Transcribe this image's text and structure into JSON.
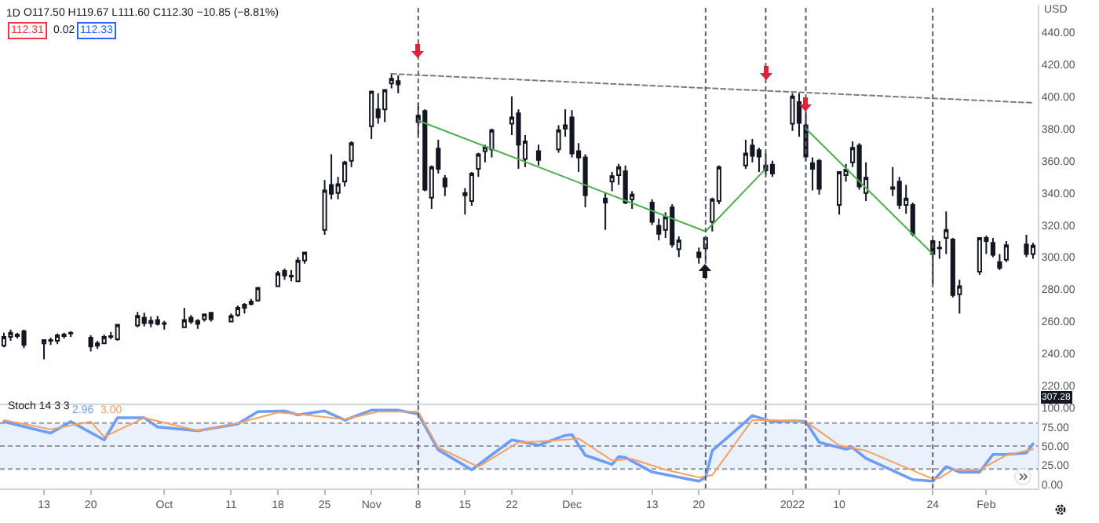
{
  "chart_data": [
    {
      "type": "candlestick",
      "title": "1D",
      "color": "#131722",
      "x": [
        "2021-09-07",
        "2021-09-08",
        "2021-09-09",
        "2021-09-10",
        "2021-09-13",
        "2021-09-14",
        "2021-09-15",
        "2021-09-16",
        "2021-09-17",
        "2021-09-20",
        "2021-09-21",
        "2021-09-22",
        "2021-09-23",
        "2021-09-24",
        "2021-09-27",
        "2021-09-28",
        "2021-09-29",
        "2021-09-30",
        "2021-10-01",
        "2021-10-04",
        "2021-10-05",
        "2021-10-06",
        "2021-10-07",
        "2021-10-08",
        "2021-10-11",
        "2021-10-12",
        "2021-10-13",
        "2021-10-14",
        "2021-10-15",
        "2021-10-18",
        "2021-10-19",
        "2021-10-20",
        "2021-10-21",
        "2021-10-22",
        "2021-10-25",
        "2021-10-26",
        "2021-10-27",
        "2021-10-28",
        "2021-10-29",
        "2021-11-01",
        "2021-11-02",
        "2021-11-03",
        "2021-11-04",
        "2021-11-05",
        "2021-11-08",
        "2021-11-09",
        "2021-11-10",
        "2021-11-11",
        "2021-11-12",
        "2021-11-15",
        "2021-11-16",
        "2021-11-17",
        "2021-11-18",
        "2021-11-19",
        "2021-11-22",
        "2021-11-23",
        "2021-11-24",
        "2021-11-26",
        "2021-11-29",
        "2021-11-30",
        "2021-12-01",
        "2021-12-02",
        "2021-12-03",
        "2021-12-06",
        "2021-12-07",
        "2021-12-08",
        "2021-12-09",
        "2021-12-10",
        "2021-12-13",
        "2021-12-14",
        "2021-12-15",
        "2021-12-16",
        "2021-12-17",
        "2021-12-20",
        "2021-12-21",
        "2021-12-22",
        "2021-12-23",
        "2021-12-27",
        "2021-12-28",
        "2021-12-29",
        "2021-12-30",
        "2021-12-31",
        "2022-01-03",
        "2022-01-04",
        "2022-01-05",
        "2022-01-06",
        "2022-01-07",
        "2022-01-10",
        "2022-01-11",
        "2022-01-12",
        "2022-01-13",
        "2022-01-14",
        "2022-01-18",
        "2022-01-19",
        "2022-01-20",
        "2022-01-21",
        "2022-01-24",
        "2022-01-25",
        "2022-01-26",
        "2022-01-27",
        "2022-01-28",
        "2022-01-31",
        "2022-02-01",
        "2022-02-02",
        "2022-02-03",
        "2022-02-04",
        "2022-02-07",
        "2022-02-08"
      ],
      "ohlc": [
        [
          245,
          253,
          244,
          250.5
        ],
        [
          250.5,
          255,
          248,
          253
        ],
        [
          252,
          253,
          249.5,
          251
        ],
        [
          254,
          255,
          243.5,
          245.5
        ],
        [
          246.5,
          248.5,
          236.5,
          248.5
        ],
        [
          248.5,
          250,
          245.5,
          248
        ],
        [
          248,
          252.5,
          246,
          251.5
        ],
        [
          251,
          253,
          249.5,
          252
        ],
        [
          252.5,
          254,
          250.5,
          253
        ],
        [
          250,
          251.5,
          241.5,
          244.5
        ],
        [
          245,
          248,
          243,
          246.5
        ],
        [
          246.5,
          252,
          246,
          250.5
        ],
        [
          250.5,
          253.5,
          249,
          251
        ],
        [
          249,
          258.5,
          248,
          258
        ],
        [
          257.5,
          266,
          256.5,
          263.5
        ],
        [
          262.5,
          265.5,
          257,
          259
        ],
        [
          259,
          263,
          256.5,
          260.5
        ],
        [
          261,
          263.5,
          257.5,
          258.5
        ],
        [
          259,
          260.5,
          255,
          258.5
        ],
        [
          256.5,
          268.5,
          256,
          261
        ],
        [
          262.5,
          264,
          258.5,
          260
        ],
        [
          258.5,
          261.5,
          255.5,
          260.5
        ],
        [
          261.5,
          265,
          260,
          264.5
        ],
        [
          265.5,
          266,
          260,
          261.5
        ],
        [
          260,
          265,
          259.5,
          263.5
        ],
        [
          264,
          270,
          263,
          268.5
        ],
        [
          268.5,
          271.5,
          265,
          270.5
        ],
        [
          271,
          274,
          270,
          272.5
        ],
        [
          273,
          281.5,
          272.5,
          281
        ],
        [
          282,
          291.5,
          282,
          290
        ],
        [
          291.5,
          293,
          286,
          288.5
        ],
        [
          288,
          292,
          285,
          288.5
        ],
        [
          285,
          300,
          284.5,
          298
        ],
        [
          298,
          303.5,
          296,
          303
        ],
        [
          317,
          348,
          314,
          341.5
        ],
        [
          345,
          364,
          336,
          339.5
        ],
        [
          340,
          350,
          336,
          345.5
        ],
        [
          347,
          360,
          344,
          359
        ],
        [
          360,
          372,
          356,
          371
        ],
        [
          381.5,
          403,
          373.5,
          403
        ],
        [
          392,
          402,
          383,
          387
        ],
        [
          392,
          404,
          384,
          404
        ],
        [
          408,
          414.5,
          405,
          411
        ],
        [
          409.5,
          413,
          402,
          407.5
        ],
        [
          388,
          396,
          375,
          384
        ],
        [
          391,
          392,
          341,
          342
        ],
        [
          337,
          357,
          330,
          356
        ],
        [
          367.5,
          373,
          352,
          355
        ],
        [
          349,
          351,
          338,
          344
        ],
        [
          340,
          343,
          326.5,
          338.5
        ],
        [
          335,
          353,
          332,
          352
        ],
        [
          355,
          365,
          350,
          364
        ],
        [
          366,
          370,
          359,
          368.5
        ],
        [
          367,
          380,
          362,
          379
        ],
        [
          383,
          400,
          376,
          387
        ],
        [
          389.5,
          392,
          355,
          370
        ],
        [
          361,
          376,
          356,
          372
        ],
        [
          366,
          370,
          357,
          360.5
        ],
        [
          367,
          382,
          365,
          379
        ],
        [
          380,
          392,
          375,
          382
        ],
        [
          387,
          391.5,
          362,
          364.5
        ],
        [
          366,
          371,
          353,
          362
        ],
        [
          362,
          364,
          331,
          338.5
        ],
        [
          336.5,
          340,
          317,
          334
        ],
        [
          347,
          353,
          341,
          350.5
        ],
        [
          351,
          358,
          345,
          356
        ],
        [
          353.5,
          357,
          333,
          334
        ],
        [
          336,
          341,
          330,
          339
        ],
        [
          334,
          336,
          320,
          322
        ],
        [
          319.5,
          324,
          310.5,
          314.5
        ],
        [
          317,
          328,
          312,
          325
        ],
        [
          331,
          333,
          306,
          308
        ],
        [
          305,
          313,
          300,
          310.5
        ],
        [
          303,
          306,
          296,
          300
        ],
        [
          305.5,
          313,
          297.5,
          312
        ],
        [
          322,
          337,
          316,
          336
        ],
        [
          335,
          357,
          333,
          356
        ],
        [
          357,
          373,
          355,
          364.5
        ],
        [
          369.5,
          373.5,
          359,
          363
        ],
        [
          366.5,
          368,
          353,
          362.5
        ],
        [
          357,
          364.5,
          351,
          354
        ],
        [
          357.5,
          360,
          350,
          352
        ],
        [
          383,
          402,
          378.5,
          400
        ],
        [
          396.5,
          402,
          375,
          383.5
        ],
        [
          382,
          390,
          360,
          362.5
        ],
        [
          358.5,
          362,
          341.5,
          355
        ],
        [
          360,
          361,
          339,
          342.5
        ],
        [
          332.5,
          353,
          326.5,
          353
        ],
        [
          351,
          358,
          347,
          354.5
        ],
        [
          359,
          372,
          356,
          368
        ],
        [
          369.5,
          371,
          342,
          344
        ],
        [
          340,
          359,
          335,
          349.5
        ],
        [
          343.5,
          356,
          338,
          342.5
        ],
        [
          347,
          350,
          330,
          332.5
        ],
        [
          332.5,
          345,
          327,
          336.5
        ],
        [
          332.5,
          334,
          313,
          314.5
        ],
        [
          310,
          311,
          283,
          302
        ],
        [
          306,
          310,
          299,
          305.5
        ],
        [
          312,
          328.5,
          302,
          317
        ],
        [
          311,
          312,
          275,
          276.5
        ],
        [
          277,
          286,
          265,
          282
        ],
        [
          291,
          312.5,
          289,
          312
        ],
        [
          312,
          313.5,
          302,
          310
        ],
        [
          309,
          312,
          300,
          301.5
        ],
        [
          297,
          302,
          292,
          293.5
        ],
        [
          298.5,
          310,
          297,
          307.5
        ],
        [
          308,
          314,
          300,
          302
        ],
        [
          302,
          309,
          299,
          307.28
        ]
      ],
      "series": [
        {
          "type": "line",
          "color": "#4caf50",
          "x": [
            "2021-11-08",
            "2021-12-21",
            "2021-12-30"
          ],
          "values": [
            385,
            316,
            355
          ]
        },
        {
          "type": "line",
          "color": "#4caf50",
          "x": [
            "2022-01-05",
            "2022-01-24"
          ],
          "values": [
            380,
            302
          ]
        },
        {
          "type": "line",
          "color": "#787b86",
          "line_style": "dashed",
          "x": [
            "2021-11-04",
            "2022-02-08"
          ],
          "values": [
            414,
            396
          ]
        }
      ],
      "xlim": [
        "2021-09-06T10:00",
        "2022-02-08T17:00"
      ],
      "ylim": [
        208,
        457
      ],
      "yticks": [
        {
          "value": 220,
          "label": "220.00"
        },
        {
          "value": 240,
          "label": "240.00"
        },
        {
          "value": 260,
          "label": "260.00"
        },
        {
          "value": 280,
          "label": "280.00"
        },
        {
          "value": 300,
          "label": "300.00"
        },
        {
          "value": 320,
          "label": "320.00"
        },
        {
          "value": 340,
          "label": "340.00"
        },
        {
          "value": 360,
          "label": "360.00"
        },
        {
          "value": 380,
          "label": "380.00"
        },
        {
          "value": 400,
          "label": "400.00"
        },
        {
          "value": 420,
          "label": "420.00"
        },
        {
          "value": 440,
          "label": "440.00"
        }
      ],
      "tick_labels": "y",
      "ref_lines": [
        {
          "axis": "x",
          "value": "2021-11-08",
          "color": "#5d606b",
          "line_style": "dashed"
        },
        {
          "axis": "x",
          "value": "2021-12-21",
          "color": "#5d606b",
          "line_style": "dashed"
        },
        {
          "axis": "x",
          "value": "2021-12-30",
          "color": "#5d606b",
          "line_style": "dashed"
        },
        {
          "axis": "x",
          "value": "2022-01-05",
          "color": "#5d606b",
          "line_style": "dashed"
        },
        {
          "axis": "x",
          "value": "2022-01-24",
          "color": "#5d606b",
          "line_style": "dashed"
        }
      ],
      "annotations": [
        "O117.50 H119.67 L111.60 C112.30 −10.85 (−8.81%)",
        "112.31",
        "0.02",
        "112.33",
        "USD",
        "307.28"
      ]
    },
    {
      "type": "line",
      "title": "Stoch 14 3 3",
      "series": [
        {
          "color": "#6f9cf5",
          "x": [
            "2021-09-07",
            "2021-09-14",
            "2021-09-17",
            "2021-09-22",
            "2021-09-24",
            "2021-09-28",
            "2021-09-30",
            "2021-10-06",
            "2021-10-12",
            "2021-10-15",
            "2021-10-19",
            "2021-10-21",
            "2021-10-25",
            "2021-10-28",
            "2021-11-01",
            "2021-11-05",
            "2021-11-08",
            "2021-11-11",
            "2021-11-16",
            "2021-11-22",
            "2021-11-24",
            "2021-11-26",
            "2021-11-30",
            "2021-12-01",
            "2021-12-03",
            "2021-12-07",
            "2021-12-08",
            "2021-12-09",
            "2021-12-13",
            "2021-12-16",
            "2021-12-20",
            "2021-12-21",
            "2021-12-22",
            "2021-12-27",
            "2021-12-28",
            "2021-12-31",
            "2022-01-03",
            "2022-01-05",
            "2022-01-07",
            "2022-01-11",
            "2022-01-12",
            "2022-01-14",
            "2022-01-21",
            "2022-01-24",
            "2022-01-26",
            "2022-01-28",
            "2022-01-31",
            "2022-02-02",
            "2022-02-04",
            "2022-02-07",
            "2022-02-08"
          ],
          "values": [
            82,
            67,
            82,
            58,
            87,
            87,
            75,
            70,
            79,
            95,
            96,
            91,
            96,
            84,
            97,
            97,
            92,
            45,
            19,
            58,
            55,
            51,
            64,
            65,
            38,
            26,
            36,
            35,
            16,
            11,
            4,
            9,
            44,
            82,
            90,
            82,
            83,
            82,
            55,
            46,
            48,
            34,
            6,
            4,
            23,
            16,
            16,
            39,
            39,
            41,
            53
          ]
        },
        {
          "color": "#f7a05f",
          "x": [
            "2021-09-07",
            "2021-09-14",
            "2021-09-20",
            "2021-09-22",
            "2021-09-28",
            "2021-10-06",
            "2021-10-12",
            "2021-10-18",
            "2021-10-21",
            "2021-10-28",
            "2021-11-02",
            "2021-11-08",
            "2021-11-11",
            "2021-11-17",
            "2021-11-23",
            "2021-11-26",
            "2021-12-01",
            "2021-12-02",
            "2021-12-07",
            "2021-12-10",
            "2021-12-15",
            "2021-12-20",
            "2021-12-22",
            "2021-12-28",
            "2021-12-31",
            "2022-01-05",
            "2022-01-10",
            "2022-01-14",
            "2022-01-24",
            "2022-01-25",
            "2022-01-27",
            "2022-01-31",
            "2022-02-04",
            "2022-02-08"
          ],
          "values": [
            84,
            72,
            82,
            62,
            87,
            70,
            80,
            94,
            92,
            85,
            95,
            95,
            48,
            23,
            55,
            56,
            59,
            60,
            31,
            33,
            19,
            9,
            12,
            84,
            84,
            82,
            51,
            44,
            7,
            8,
            19,
            19,
            38,
            46
          ]
        }
      ],
      "xlim": [
        "2021-09-06T10:00",
        "2022-02-08T17:00"
      ],
      "xticks": [
        {
          "value": "2021-09-13",
          "label": "13"
        },
        {
          "value": "2021-09-20",
          "label": "20"
        },
        {
          "value": "2021-10-01",
          "label": "Oct"
        },
        {
          "value": "2021-10-11",
          "label": "11"
        },
        {
          "value": "2021-10-18",
          "label": "18"
        },
        {
          "value": "2021-10-25",
          "label": "25"
        },
        {
          "value": "2021-11-01",
          "label": "Nov"
        },
        {
          "value": "2021-11-08",
          "label": "8"
        },
        {
          "value": "2021-11-15",
          "label": "15"
        },
        {
          "value": "2021-11-22",
          "label": "22"
        },
        {
          "value": "2021-12-01",
          "label": "Dec"
        },
        {
          "value": "2021-12-13",
          "label": "13"
        },
        {
          "value": "2021-12-20",
          "label": "20"
        },
        {
          "value": "2022-01-03",
          "label": "2022"
        },
        {
          "value": "2022-01-10",
          "label": "10"
        },
        {
          "value": "2022-01-24",
          "label": "24"
        },
        {
          "value": "2022-02-01",
          "label": "Feb"
        }
      ],
      "ylim": [
        -5.5,
        103.5
      ],
      "yticks": [
        {
          "value": 0,
          "label": "0.00"
        },
        {
          "value": 25,
          "label": "25.00"
        },
        {
          "value": 50,
          "label": "50.00"
        },
        {
          "value": 75,
          "label": "75.00"
        },
        {
          "value": 100,
          "label": "100.00"
        }
      ],
      "bands": [
        {
          "axis": "y",
          "from": 20,
          "to": 80,
          "color": "#e9f1fd"
        }
      ],
      "ref_lines": [
        {
          "axis": "y",
          "value": 80,
          "color": "#9598a1",
          "line_style": "dashed"
        },
        {
          "axis": "y",
          "value": 50,
          "color": "#9598a1",
          "line_style": "dashed"
        },
        {
          "axis": "y",
          "value": 20,
          "color": "#9598a1",
          "line_style": "dashed"
        },
        {
          "axis": "x",
          "value": "2021-11-08",
          "color": "#5d606b",
          "line_style": "dashed"
        },
        {
          "axis": "x",
          "value": "2021-12-21",
          "color": "#5d606b",
          "line_style": "dashed"
        },
        {
          "axis": "x",
          "value": "2021-12-30",
          "color": "#5d606b",
          "line_style": "dashed"
        },
        {
          "axis": "x",
          "value": "2022-01-05",
          "color": "#5d606b",
          "line_style": "dashed"
        },
        {
          "axis": "x",
          "value": "2022-01-24",
          "color": "#5d606b",
          "line_style": "dashed"
        }
      ],
      "annotations": [
        "2.96",
        "3.00"
      ]
    }
  ]
}
